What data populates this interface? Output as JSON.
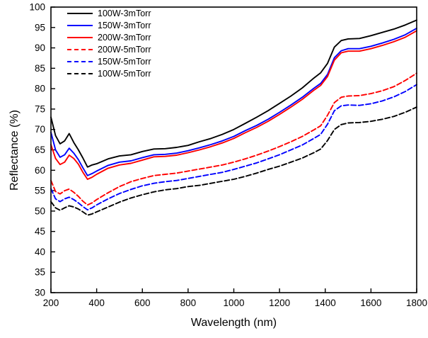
{
  "chart_data": {
    "type": "line",
    "title": "",
    "xlabel": "Wavelength (nm)",
    "ylabel": "Reflectance (%)",
    "xlim": [
      200,
      1800
    ],
    "ylim": [
      30,
      100
    ],
    "xtick_step": 200,
    "ytick_step": 5,
    "grid": false,
    "legend_position": "top-left",
    "x": [
      200,
      220,
      240,
      260,
      280,
      300,
      320,
      340,
      360,
      380,
      400,
      450,
      500,
      550,
      600,
      650,
      700,
      750,
      800,
      850,
      900,
      950,
      1000,
      1050,
      1100,
      1150,
      1200,
      1250,
      1300,
      1350,
      1380,
      1410,
      1440,
      1470,
      1500,
      1550,
      1600,
      1650,
      1700,
      1750,
      1800
    ],
    "series": [
      {
        "name": "100W-3mTorr",
        "color": "#000000",
        "style": "solid",
        "values": [
          73,
          68.5,
          66.5,
          67.2,
          69,
          66.8,
          65,
          63,
          60.8,
          61.3,
          61.6,
          62.8,
          63.5,
          63.8,
          64.6,
          65.2,
          65.3,
          65.6,
          66.1,
          67,
          67.8,
          68.8,
          70,
          71.5,
          73,
          74.6,
          76.4,
          78.2,
          80.2,
          82.6,
          83.9,
          86.2,
          90.2,
          91.8,
          92.2,
          92.3,
          93,
          93.8,
          94.6,
          95.6,
          96.8
        ]
      },
      {
        "name": "150W-3mTorr",
        "color": "#0000ff",
        "style": "solid",
        "values": [
          69.3,
          65,
          63.2,
          63.8,
          65.4,
          64.2,
          62.6,
          60.6,
          58.7,
          59.2,
          59.8,
          61.2,
          62,
          62.3,
          63.1,
          63.8,
          63.9,
          64.2,
          64.8,
          65.5,
          66.3,
          67.2,
          68.3,
          69.7,
          71,
          72.5,
          74.2,
          76,
          77.9,
          80.1,
          81.3,
          83.5,
          87.6,
          89.3,
          89.8,
          89.8,
          90.4,
          91.2,
          92.1,
          93.2,
          94.8
        ]
      },
      {
        "name": "200W-3mTorr",
        "color": "#ff0000",
        "style": "solid",
        "values": [
          66.3,
          62.9,
          61.4,
          62,
          63.7,
          62.9,
          61.5,
          59.5,
          57.8,
          58.3,
          59,
          60.5,
          61.3,
          61.7,
          62.5,
          63.3,
          63.4,
          63.7,
          64.3,
          65,
          65.8,
          66.7,
          67.8,
          69.2,
          70.5,
          72,
          73.7,
          75.5,
          77.4,
          79.6,
          80.8,
          83,
          87,
          88.8,
          89.2,
          89.2,
          89.8,
          90.6,
          91.5,
          92.6,
          94.2
        ]
      },
      {
        "name": "200W-5mTorr",
        "color": "#ff0000",
        "style": "dashed",
        "values": [
          57.5,
          54.8,
          54.2,
          55,
          55.4,
          54.6,
          53.6,
          52.4,
          51.5,
          52,
          52.8,
          54.5,
          56,
          57.2,
          58,
          58.7,
          59,
          59.3,
          59.8,
          60.3,
          60.8,
          61.3,
          62,
          62.8,
          63.7,
          64.7,
          65.8,
          67,
          68.3,
          69.9,
          70.9,
          73.5,
          76.6,
          77.9,
          78.2,
          78.3,
          78.8,
          79.5,
          80.5,
          82,
          83.8
        ]
      },
      {
        "name": "150W-5mTorr",
        "color": "#0000ff",
        "style": "dashed",
        "values": [
          55.5,
          53,
          52.3,
          53,
          53.4,
          52.8,
          52,
          51.1,
          50.3,
          50.8,
          51.5,
          53,
          54.3,
          55.3,
          56.2,
          56.8,
          57.2,
          57.5,
          58,
          58.5,
          59,
          59.5,
          60.2,
          61,
          61.8,
          62.8,
          63.8,
          65,
          66.2,
          67.8,
          68.8,
          71.3,
          74.6,
          75.8,
          76,
          75.9,
          76.3,
          77,
          78,
          79.3,
          81
        ]
      },
      {
        "name": "100W-5mTorr",
        "color": "#000000",
        "style": "dashed",
        "values": [
          52.3,
          50.8,
          50.2,
          50.8,
          51.3,
          51,
          50.5,
          49.8,
          49,
          49.3,
          49.8,
          51,
          52.2,
          53.2,
          54,
          54.7,
          55.2,
          55.5,
          56,
          56.3,
          56.8,
          57.3,
          57.8,
          58.5,
          59.3,
          60.2,
          61,
          62,
          63,
          64.3,
          65.2,
          67.3,
          70,
          71.2,
          71.6,
          71.7,
          72,
          72.5,
          73.2,
          74.2,
          75.5
        ]
      }
    ]
  }
}
